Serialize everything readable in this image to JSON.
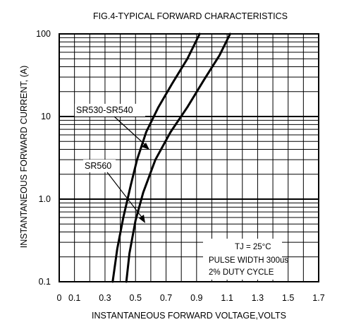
{
  "chart_data": {
    "type": "line",
    "title": "FIG.4-TYPICAL FORWARD CHARACTERISTICS",
    "xlabel": "INSTANTANEOUS FORWARD VOLTAGE,VOLTS",
    "ylabel": "INSTANTANEOUS FORWARD CURRENT, (A)",
    "xlim": [
      0,
      1.7
    ],
    "ylim": [
      0.1,
      100
    ],
    "yscale": "log",
    "grid": true,
    "x_ticks": [
      {
        "value": 0,
        "label": "0"
      },
      {
        "value": 0.1,
        "label": "0.1"
      },
      {
        "value": 0.3,
        "label": "0.3"
      },
      {
        "value": 0.5,
        "label": "0.5"
      },
      {
        "value": 0.7,
        "label": "0.7"
      },
      {
        "value": 0.9,
        "label": "0.9"
      },
      {
        "value": 1.1,
        "label": "1.1"
      },
      {
        "value": 1.3,
        "label": "1.3"
      },
      {
        "value": 1.5,
        "label": "1.5"
      },
      {
        "value": 1.7,
        "label": "1.7"
      }
    ],
    "y_ticks": [
      {
        "value": 0.1,
        "label": "0.1"
      },
      {
        "value": 1,
        "label": "1.0"
      },
      {
        "value": 10,
        "label": "10"
      },
      {
        "value": 100,
        "label": "100"
      }
    ],
    "series": [
      {
        "name": "SR530-SR540",
        "x": [
          0.35,
          0.38,
          0.42,
          0.47,
          0.51,
          0.57,
          0.65,
          0.74,
          0.84,
          0.92
        ],
        "y": [
          0.1,
          0.25,
          0.6,
          1.5,
          3.0,
          6.5,
          13,
          25,
          50,
          100
        ]
      },
      {
        "name": "SR560",
        "x": [
          0.44,
          0.46,
          0.5,
          0.55,
          0.63,
          0.73,
          0.84,
          0.95,
          1.05,
          1.12
        ],
        "y": [
          0.1,
          0.22,
          0.55,
          1.2,
          3.0,
          6.5,
          13,
          28,
          55,
          100
        ]
      }
    ],
    "annotations": [
      {
        "text": "SR530-SR540",
        "points_to": {
          "x": 0.505,
          "y": 4.0
        }
      },
      {
        "text": "SR560",
        "points_to": {
          "x": 0.5,
          "y": 0.58
        }
      }
    ],
    "notes": [
      "TJ = 25°C",
      "PULSE WIDTH 300us",
      "2% DUTY CYCLE"
    ]
  }
}
